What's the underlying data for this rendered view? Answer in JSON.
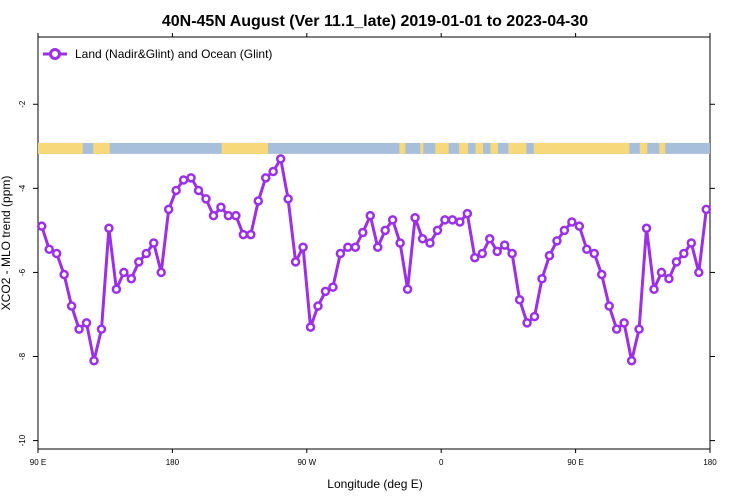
{
  "chart_data": {
    "type": "line",
    "title": "40N-45N August (Ver 11.1_late)   2019-01-01 to 2023-04-30",
    "xlabel": "Longitude (deg E)",
    "ylabel": "XCO2 - MLO trend (ppm)",
    "x_ticks": [
      {
        "value": 90,
        "label": "90 E"
      },
      {
        "value": 180,
        "label": "180"
      },
      {
        "value": 270,
        "label": "90 W"
      },
      {
        "value": 360,
        "label": "0"
      },
      {
        "value": 450,
        "label": "90 E"
      },
      {
        "value": 540,
        "label": "180"
      }
    ],
    "y_ticks": [
      {
        "value": -2,
        "label": "-2"
      },
      {
        "value": -4,
        "label": "-4"
      },
      {
        "value": -6,
        "label": "-6"
      },
      {
        "value": -8,
        "label": "-8"
      },
      {
        "value": -10,
        "label": "-10"
      }
    ],
    "xlim": [
      90,
      540
    ],
    "ylim": [
      -10.2,
      -0.4
    ],
    "grid": false,
    "legend_position": "top-left",
    "series": [
      {
        "name": "Land (Nadir&Glint) and Ocean (Glint)",
        "color": "#9b30e6",
        "x": [
          92.5,
          97.5,
          102.5,
          107.5,
          112.5,
          117.5,
          122.5,
          127.5,
          132.5,
          137.5,
          142.5,
          147.5,
          152.5,
          157.5,
          162.5,
          167.5,
          172.5,
          177.5,
          182.5,
          187.5,
          192.5,
          197.5,
          202.5,
          207.5,
          212.5,
          217.5,
          222.5,
          227.5,
          232.5,
          237.5,
          242.5,
          247.5,
          252.5,
          257.5,
          262.5,
          267.5,
          272.5,
          277.5,
          282.5,
          287.5,
          292.5,
          297.5,
          302.5,
          307.5,
          312.5,
          317.5,
          322.5,
          327.5,
          332.5,
          337.5,
          342.5,
          347.5,
          352.5,
          357.5,
          362.5,
          367.5,
          372.5,
          377.5,
          382.5,
          387.5,
          392.5,
          397.5,
          402.5,
          407.5,
          412.5,
          417.5,
          422.5,
          427.5,
          432.5,
          437.5,
          442.5,
          447.5,
          452.5,
          457.5,
          462.5,
          467.5,
          472.5,
          477.5,
          482.5,
          487.5,
          492.5,
          497.5,
          502.5,
          507.5,
          512.5,
          517.5,
          522.5,
          527.5,
          532.5,
          537.5
        ],
        "values": [
          -4.9,
          -5.45,
          -5.55,
          -6.05,
          -6.8,
          -7.35,
          -7.2,
          -8.1,
          -7.35,
          -4.95,
          -6.4,
          -6.0,
          -6.15,
          -5.75,
          -5.55,
          -5.3,
          -6.0,
          -4.5,
          -4.05,
          -3.8,
          -3.75,
          -4.05,
          -4.25,
          -4.65,
          -4.45,
          -4.65,
          -4.65,
          -5.1,
          -5.1,
          -4.3,
          -3.75,
          -3.6,
          -3.3,
          -4.25,
          -5.75,
          -5.4,
          -7.3,
          -6.8,
          -6.45,
          -6.35,
          -5.55,
          -5.4,
          -5.4,
          -5.05,
          -4.65,
          -5.4,
          -5.0,
          -4.75,
          -5.3,
          -6.4,
          -4.7,
          -5.2,
          -5.3,
          -5.0,
          -4.75,
          -4.75,
          -4.8,
          -4.6,
          -5.65,
          -5.55,
          -5.2,
          -5.5,
          -5.35,
          -5.55,
          -6.65,
          -7.2,
          -7.05,
          -6.15,
          -5.6,
          -5.25,
          -5.0,
          -4.8,
          -4.9,
          -5.45,
          -5.55,
          -6.05,
          -6.8,
          -7.35,
          -7.2,
          -8.1,
          -7.35,
          -4.95,
          -6.4,
          -6.0,
          -6.15,
          -5.75,
          -5.55,
          -5.3,
          -6.0,
          -4.5
        ]
      }
    ],
    "surface_strip": {
      "y_value": -3.05,
      "land_color": "#f7d87a",
      "ocean_color": "#a8bfdc",
      "land_segments": [
        [
          90,
          120
        ],
        [
          127,
          138
        ],
        [
          213,
          244
        ],
        [
          332,
          336
        ],
        [
          346,
          348
        ],
        [
          356,
          365
        ],
        [
          372,
          378
        ],
        [
          383,
          388
        ],
        [
          393,
          398
        ],
        [
          405,
          417
        ],
        [
          422,
          486
        ],
        [
          493,
          498
        ],
        [
          506,
          510
        ]
      ]
    }
  }
}
